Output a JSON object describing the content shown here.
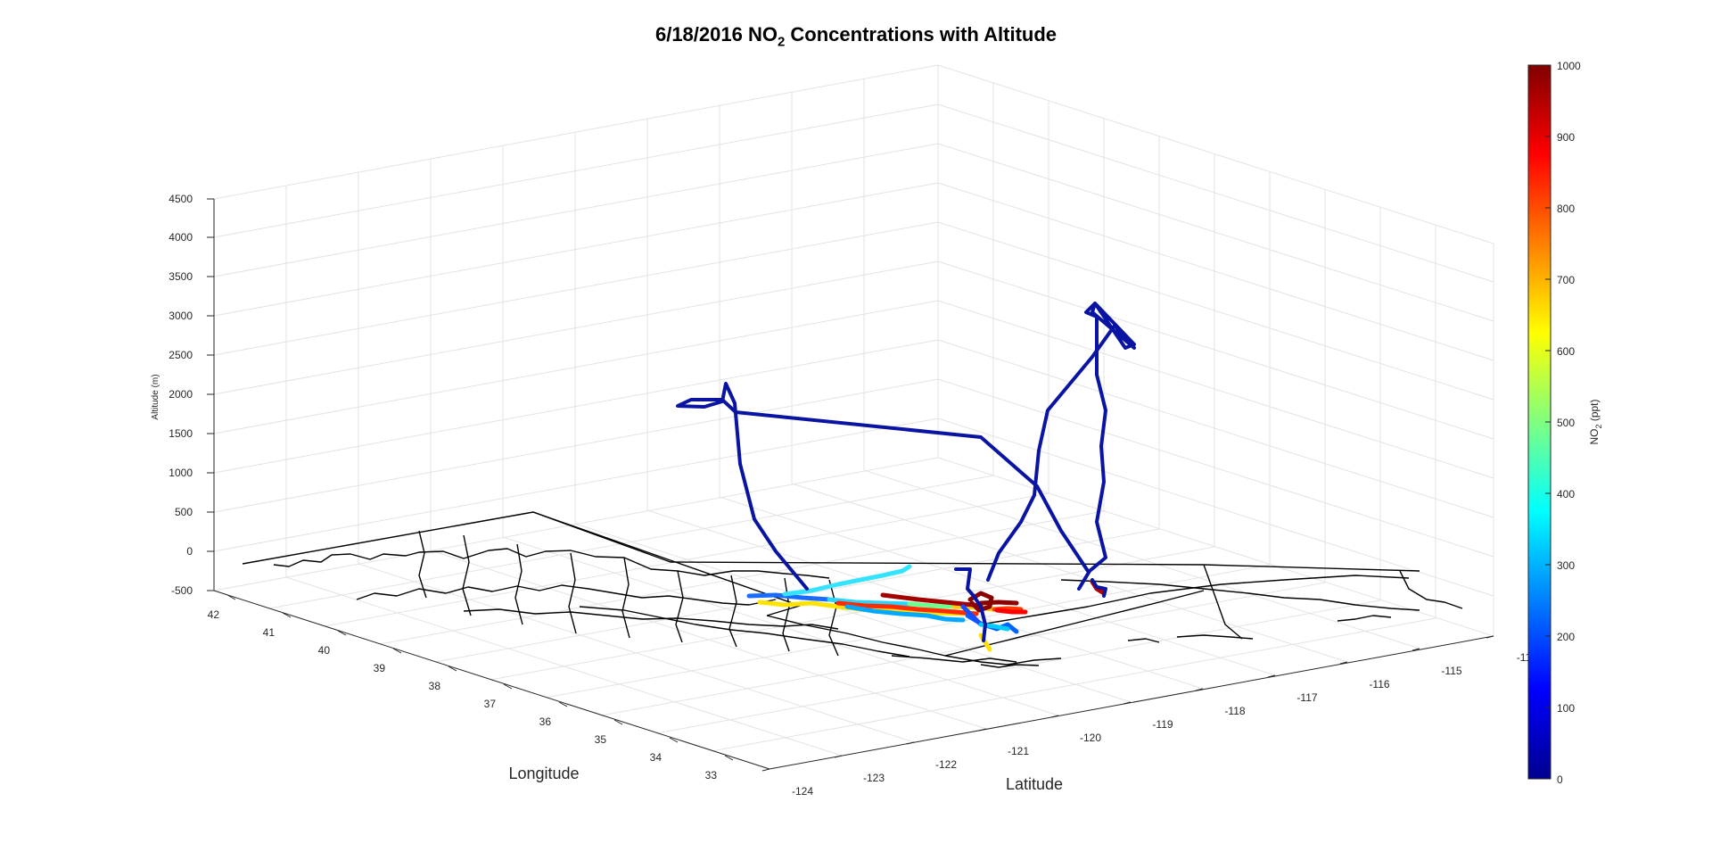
{
  "chart_data": {
    "type": "line3d",
    "title_prefix": "6/18/2016 NO",
    "title_sub": "2",
    "title_suffix": " Concentrations with Altitude",
    "xlabel": "Longitude",
    "ylabel": "Latitude",
    "zlabel": "Altitude (m)",
    "x_ticks": [
      "42",
      "41",
      "40",
      "39",
      "38",
      "37",
      "36",
      "35",
      "34",
      "33"
    ],
    "y_ticks": [
      "-124",
      "-123",
      "-122",
      "-121",
      "-120",
      "-119",
      "-118",
      "-117",
      "-116",
      "-115",
      "-11"
    ],
    "z_ticks": [
      "4500",
      "4000",
      "3500",
      "3000",
      "2500",
      "2000",
      "1500",
      "1000",
      "500",
      "0",
      "-500"
    ],
    "zlim": [
      -500,
      4500
    ],
    "colorbar": {
      "label_prefix": "NO",
      "label_sub": "2",
      "label_suffix": " (ppt)",
      "ticks": [
        "1000",
        "900",
        "800",
        "700",
        "600",
        "500",
        "400",
        "300",
        "200",
        "100",
        "0"
      ],
      "range": [
        0,
        1000
      ],
      "colormap": "jet"
    },
    "grid": true,
    "basemap": "California/Nevada county boundaries",
    "series": [
      {
        "segment": "flight-track-west-loop",
        "no2": 50,
        "points_lat_lon_alt": [
          [
            37.4,
            -121.2,
            -400
          ],
          [
            38.6,
            -120.9,
            200
          ],
          [
            39.0,
            -120.6,
            700
          ],
          [
            39.4,
            -120.8,
            1300
          ],
          [
            39.6,
            -120.6,
            1800
          ],
          [
            39.5,
            -121.1,
            1900
          ],
          [
            39.7,
            -119.2,
            1800
          ],
          [
            39.0,
            -117.3,
            1550
          ],
          [
            38.1,
            -117.4,
            500
          ],
          [
            36.8,
            -118.3,
            -350
          ]
        ]
      },
      {
        "segment": "flight-track-east-climb",
        "no2": 40,
        "points_lat_lon_alt": [
          [
            36.3,
            -117.6,
            -400
          ],
          [
            37.3,
            -117.2,
            200
          ],
          [
            37.7,
            -117.0,
            1300
          ],
          [
            37.8,
            -116.7,
            2000
          ],
          [
            37.5,
            -116.5,
            2500
          ],
          [
            37.0,
            -116.1,
            3000
          ],
          [
            37.1,
            -116.3,
            3300
          ],
          [
            37.4,
            -116.5,
            2200
          ],
          [
            37.6,
            -116.4,
            1200
          ],
          [
            37.5,
            -116.2,
            -300
          ],
          [
            35.9,
            -117.3,
            -400
          ]
        ]
      },
      {
        "segment": "boundary-layer-sampling",
        "no2_range": [
          0,
          1000
        ],
        "altitude_approx": -450,
        "note_values": [
          300,
          450,
          650,
          900,
          1000,
          800,
          600,
          350,
          200
        ]
      }
    ]
  }
}
